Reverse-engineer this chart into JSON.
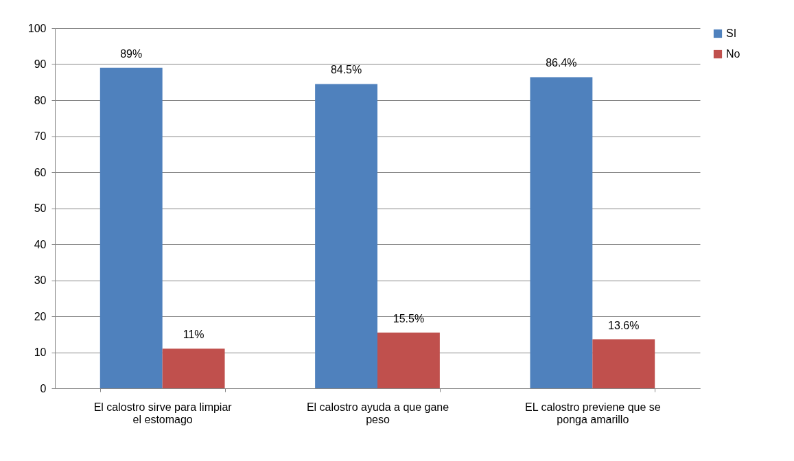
{
  "chart_data": {
    "type": "bar",
    "categories": [
      "El calostro sirve para limpiar el estomago",
      "El calostro ayuda a que gane peso",
      "EL calostro previene que se ponga amarillo"
    ],
    "series": [
      {
        "name": "SI",
        "color": "#4f81bd",
        "values": [
          89,
          84.5,
          86.4
        ],
        "value_labels": [
          "89%",
          "84.5%",
          "86.4%"
        ]
      },
      {
        "name": "No",
        "color": "#c0504d",
        "values": [
          11,
          15.5,
          13.6
        ],
        "value_labels": [
          "11%",
          "15.5%",
          "13.6%"
        ]
      }
    ],
    "ylim": [
      0,
      100
    ],
    "yticks": [
      0,
      10,
      20,
      30,
      40,
      50,
      60,
      70,
      80,
      90,
      100
    ],
    "grid": "y",
    "legend": "right"
  }
}
